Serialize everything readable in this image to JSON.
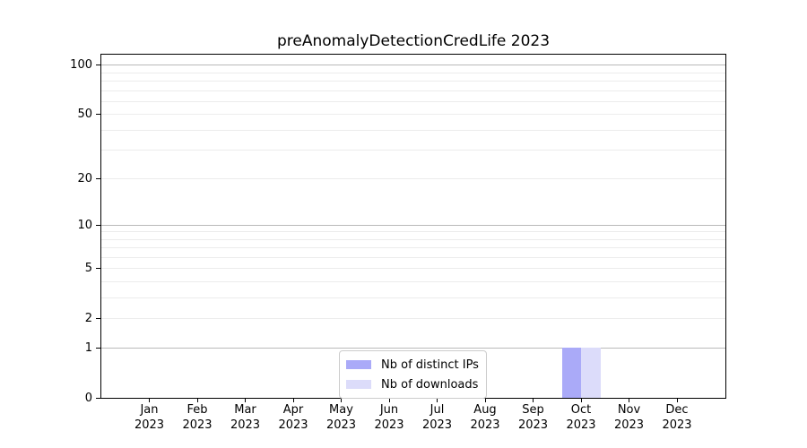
{
  "chart_data": {
    "type": "bar",
    "title": "preAnomalyDetectionCredLife 2023",
    "x_ticks": [
      {
        "month": "Jan",
        "year": "2023"
      },
      {
        "month": "Feb",
        "year": "2023"
      },
      {
        "month": "Mar",
        "year": "2023"
      },
      {
        "month": "Apr",
        "year": "2023"
      },
      {
        "month": "May",
        "year": "2023"
      },
      {
        "month": "Jun",
        "year": "2023"
      },
      {
        "month": "Jul",
        "year": "2023"
      },
      {
        "month": "Aug",
        "year": "2023"
      },
      {
        "month": "Sep",
        "year": "2023"
      },
      {
        "month": "Oct",
        "year": "2023"
      },
      {
        "month": "Nov",
        "year": "2023"
      },
      {
        "month": "Dec",
        "year": "2023"
      }
    ],
    "series": [
      {
        "name": "Nb of distinct IPs",
        "color": "#aaaaf8",
        "values": [
          0,
          0,
          0,
          0,
          0,
          0,
          0,
          0,
          0,
          1,
          0,
          0
        ]
      },
      {
        "name": "Nb of downloads",
        "color": "#dcdcfa",
        "values": [
          0,
          0,
          0,
          0,
          0,
          0,
          0,
          0,
          0,
          1,
          0,
          0
        ]
      }
    ],
    "y_axis": {
      "scale": "log1p",
      "ticks": [
        0,
        1,
        2,
        5,
        10,
        20,
        50,
        100
      ],
      "minor_ticks": [
        3,
        4,
        6,
        7,
        8,
        9,
        30,
        40,
        60,
        70,
        80,
        90
      ],
      "max": 116
    },
    "grid": {
      "horizontal": true,
      "major_color": "#b9b9b9",
      "minor_color": "#ececec"
    },
    "legend": {
      "position": "lower-center-inside",
      "entries": [
        "Nb of distinct IPs",
        "Nb of downloads"
      ]
    }
  }
}
